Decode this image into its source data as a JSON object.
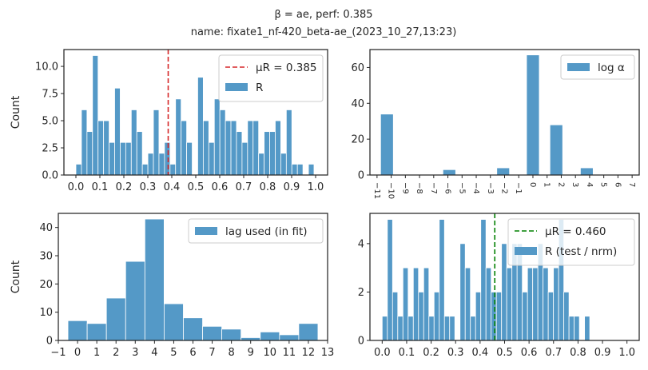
{
  "figure": {
    "title_line1": "β = ae,      perf: 0.385",
    "title_line2": "name: fixate1_nf-420_beta-ae_(2023_10_27,13:23)",
    "bar_color": "#5499c7"
  },
  "chart_data": [
    {
      "type": "bar",
      "ylabel": "Count",
      "xlim": [
        -0.05,
        1.05
      ],
      "ylim": [
        0,
        11.55
      ],
      "xticks": [
        0.0,
        0.1,
        0.2,
        0.3,
        0.4,
        0.5,
        0.6,
        0.7,
        0.8,
        0.9,
        1.0
      ],
      "xtick_labels": [
        "0.0",
        "0.1",
        "0.2",
        "0.3",
        "0.4",
        "0.5",
        "0.6",
        "0.7",
        "0.8",
        "0.9",
        "1.0"
      ],
      "yticks": [
        0,
        2.5,
        5,
        7.5,
        10
      ],
      "ytick_labels": [
        "0.0",
        "2.5",
        "5.0",
        "7.5",
        "10.0"
      ],
      "bin_width": 0.0231,
      "bin_start": 0.0,
      "counts": [
        1,
        6,
        4,
        11,
        5,
        5,
        3,
        8,
        3,
        3,
        6,
        4,
        1,
        2,
        6,
        2,
        3,
        1,
        7,
        5,
        3,
        0,
        9,
        5,
        3,
        7,
        6,
        5,
        5,
        4,
        3,
        5,
        5,
        2,
        4,
        4,
        5,
        2,
        6,
        1,
        1,
        0,
        1
      ],
      "vline": {
        "x": 0.385,
        "color": "#d62728",
        "label": "μR = 0.385"
      },
      "legend": [
        "μR = 0.385",
        "R"
      ],
      "legend_location": "top-right"
    },
    {
      "type": "bar",
      "ylabel": "",
      "xlim": [
        -11.5,
        7.5
      ],
      "ylim": [
        0,
        70
      ],
      "xticks": [
        -11,
        -10,
        -9,
        -8,
        -7,
        -6,
        -5,
        -4,
        -3,
        -2,
        -1,
        0,
        1,
        2,
        3,
        4,
        5,
        6,
        7
      ],
      "xtick_labels": [
        "−11",
        "−10",
        "−9",
        "−8",
        "−7",
        "−6",
        "−5",
        "−4",
        "−3",
        "−2",
        "−1",
        "0",
        "1",
        "2",
        "3",
        "4",
        "5",
        "6",
        "7"
      ],
      "yticks": [
        0,
        20,
        40,
        60
      ],
      "ytick_labels": [
        "0",
        "20",
        "40",
        "60"
      ],
      "bins": [
        {
          "x0": -10.75,
          "x1": -9.85,
          "count": 34
        },
        {
          "x0": -6.35,
          "x1": -5.45,
          "count": 3
        },
        {
          "x0": -2.55,
          "x1": -1.65,
          "count": 4
        },
        {
          "x0": -0.45,
          "x1": 0.45,
          "count": 67
        },
        {
          "x0": 1.2,
          "x1": 2.1,
          "count": 28
        },
        {
          "x0": 3.35,
          "x1": 4.25,
          "count": 4
        }
      ],
      "legend": [
        "log α"
      ],
      "legend_location": "top-right"
    },
    {
      "type": "bar",
      "ylabel": "Count",
      "xlim": [
        -1,
        13
      ],
      "ylim": [
        0,
        45
      ],
      "xticks": [
        -1,
        0,
        1,
        2,
        3,
        4,
        5,
        6,
        7,
        8,
        9,
        10,
        11,
        12,
        13
      ],
      "xtick_labels": [
        "−1",
        "0",
        "1",
        "2",
        "3",
        "4",
        "5",
        "6",
        "7",
        "8",
        "9",
        "10",
        "11",
        "12",
        "13"
      ],
      "yticks": [
        0,
        10,
        20,
        30,
        40
      ],
      "ytick_labels": [
        "0",
        "10",
        "20",
        "30",
        "40"
      ],
      "bins": [
        {
          "x0": -0.5,
          "x1": 0.5,
          "count": 7
        },
        {
          "x0": 0.5,
          "x1": 1.5,
          "count": 6
        },
        {
          "x0": 1.5,
          "x1": 2.5,
          "count": 15
        },
        {
          "x0": 2.5,
          "x1": 3.5,
          "count": 28
        },
        {
          "x0": 3.5,
          "x1": 4.5,
          "count": 43
        },
        {
          "x0": 4.5,
          "x1": 5.5,
          "count": 13
        },
        {
          "x0": 5.5,
          "x1": 6.5,
          "count": 8
        },
        {
          "x0": 6.5,
          "x1": 7.5,
          "count": 5
        },
        {
          "x0": 7.5,
          "x1": 8.5,
          "count": 4
        },
        {
          "x0": 8.5,
          "x1": 9.5,
          "count": 1
        },
        {
          "x0": 9.5,
          "x1": 10.5,
          "count": 3
        },
        {
          "x0": 10.5,
          "x1": 11.5,
          "count": 2
        },
        {
          "x0": 11.5,
          "x1": 12.5,
          "count": 6
        }
      ],
      "legend": [
        "lag used (in fit)"
      ],
      "legend_location": "top-right"
    },
    {
      "type": "bar",
      "ylabel": "",
      "xlim": [
        -0.05,
        1.05
      ],
      "ylim": [
        0,
        5.25
      ],
      "xticks": [
        0.0,
        0.1,
        0.2,
        0.3,
        0.4,
        0.5,
        0.6,
        0.7,
        0.8,
        0.9,
        1.0
      ],
      "xtick_labels": [
        "0.0",
        "0.1",
        "0.2",
        "0.3",
        "0.4",
        "0.5",
        "0.6",
        "0.7",
        "0.8",
        "0.9",
        "1.0"
      ],
      "yticks": [
        0,
        2,
        4
      ],
      "ytick_labels": [
        "0",
        "2",
        "4"
      ],
      "bin_width": 0.0212,
      "bin_start": 0.0,
      "counts": [
        1,
        5,
        2,
        1,
        3,
        1,
        3,
        2,
        3,
        1,
        2,
        5,
        1,
        1,
        0,
        4,
        3,
        1,
        2,
        5,
        3,
        2,
        2,
        4,
        3,
        4,
        4,
        2,
        3,
        3,
        4,
        3,
        2,
        3,
        5,
        2,
        1,
        1,
        0,
        1,
        0
      ],
      "vline": {
        "x": 0.46,
        "color": "#008000",
        "label": "μR = 0.460"
      },
      "legend": [
        "μR = 0.460",
        "R (test / nrm)"
      ],
      "legend_location": "top-right"
    }
  ]
}
